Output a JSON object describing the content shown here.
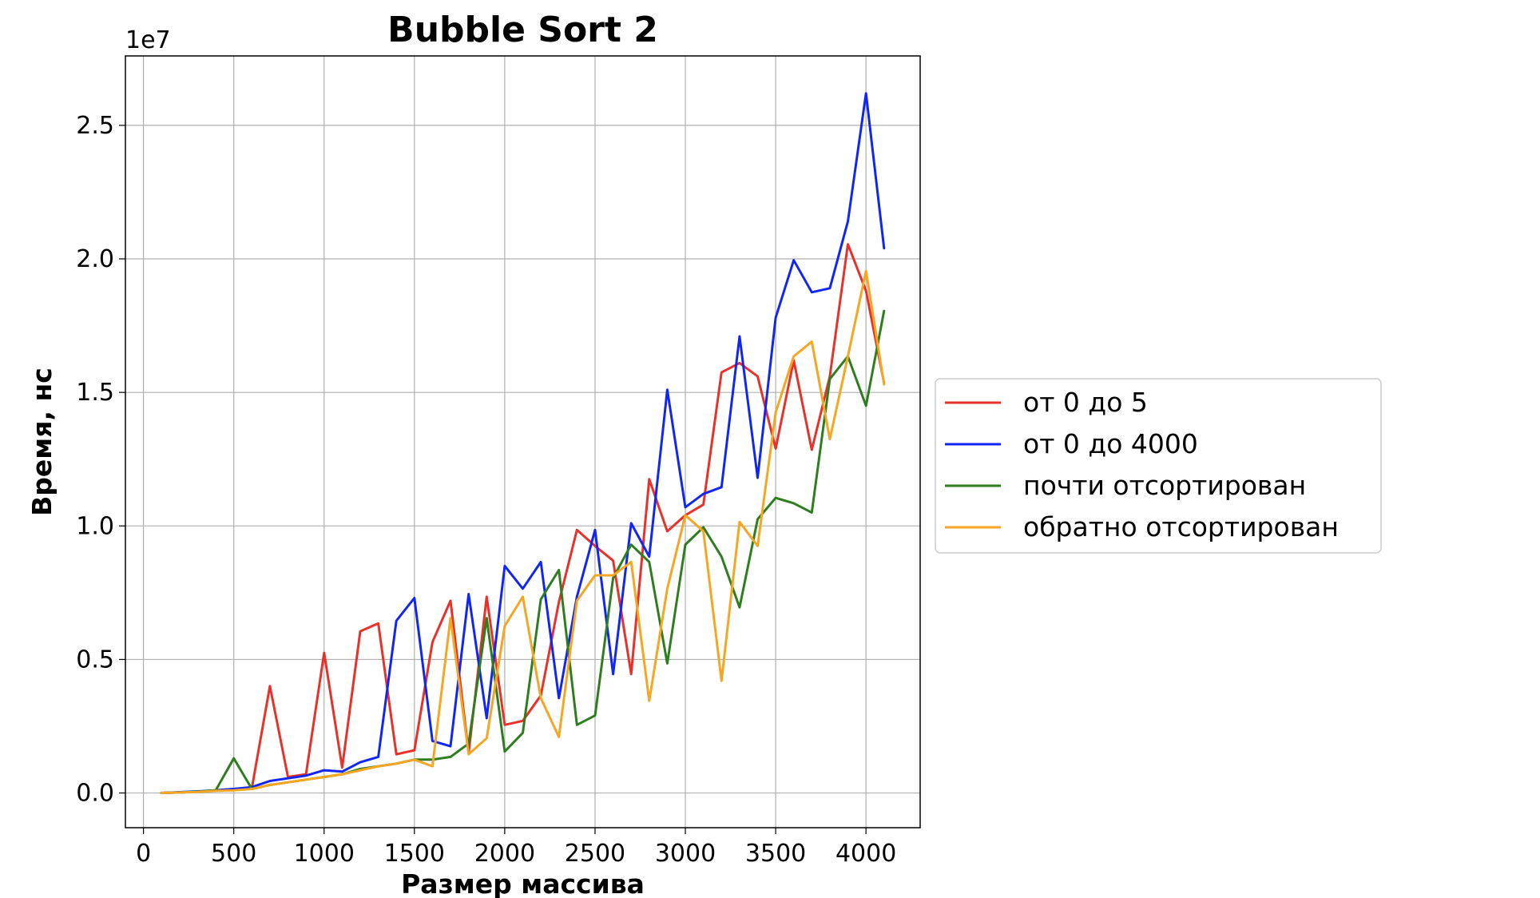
{
  "chart_data": {
    "type": "line",
    "title": "Bubble Sort 2",
    "xlabel": "Размер массива",
    "ylabel": "Время, нс",
    "y_offset_label": "1e7",
    "xlim": [
      -100,
      4300
    ],
    "ylim": [
      -1300000,
      27600000
    ],
    "xticks": [
      0,
      500,
      1000,
      1500,
      2000,
      2500,
      3000,
      3500,
      4000
    ],
    "xtick_labels": [
      "0",
      "500",
      "1000",
      "1500",
      "2000",
      "2500",
      "3000",
      "3500",
      "4000"
    ],
    "yticks": [
      0,
      5000000,
      10000000,
      15000000,
      20000000,
      25000000
    ],
    "ytick_labels": [
      "0.0",
      "0.5",
      "1.0",
      "1.5",
      "2.0",
      "2.5"
    ],
    "grid": true,
    "legend_position": "outside-right",
    "x": [
      100,
      200,
      300,
      400,
      500,
      600,
      700,
      800,
      900,
      1000,
      1100,
      1200,
      1300,
      1400,
      1500,
      1600,
      1700,
      1800,
      1900,
      2000,
      2100,
      2200,
      2300,
      2400,
      2500,
      2600,
      2700,
      2800,
      2900,
      3000,
      3100,
      3200,
      3300,
      3400,
      3500,
      3600,
      3700,
      3800,
      3900,
      4000,
      4100
    ],
    "series": [
      {
        "name": "от 0 до 5",
        "color": "#e8312a",
        "values": [
          0,
          20000,
          50000,
          100000,
          150000,
          180000,
          4000000,
          600000,
          700000,
          5250000,
          950000,
          6050000,
          6350000,
          1450000,
          1600000,
          5650000,
          7200000,
          1500000,
          7350000,
          2550000,
          2700000,
          3650000,
          7150000,
          9850000,
          9250000,
          8700000,
          4450000,
          11750000,
          9800000,
          10400000,
          10800000,
          15750000,
          16100000,
          15600000,
          12900000,
          16200000,
          12850000,
          15600000,
          20550000,
          18800000,
          15350000
        ]
      },
      {
        "name": "от 0 до 4000",
        "color": "#1126f6",
        "values": [
          0,
          30000,
          60000,
          100000,
          150000,
          220000,
          450000,
          550000,
          650000,
          850000,
          800000,
          1150000,
          1350000,
          6450000,
          7300000,
          1950000,
          1750000,
          7450000,
          2800000,
          8500000,
          7650000,
          8650000,
          3550000,
          7350000,
          9850000,
          4450000,
          10100000,
          8850000,
          15100000,
          10700000,
          11200000,
          11450000,
          17100000,
          11800000,
          17800000,
          19950000,
          18750000,
          18900000,
          21400000,
          26200000,
          20400000
        ]
      },
      {
        "name": "почти отсортирован",
        "color": "#2e7d1f",
        "values": [
          0,
          20000,
          50000,
          100000,
          1300000,
          150000,
          300000,
          400000,
          500000,
          600000,
          700000,
          900000,
          1000000,
          1100000,
          1250000,
          1250000,
          1350000,
          1850000,
          6550000,
          1550000,
          2250000,
          7250000,
          8350000,
          2550000,
          2900000,
          8050000,
          9300000,
          8650000,
          4850000,
          9300000,
          9950000,
          8850000,
          6950000,
          10250000,
          11050000,
          10850000,
          10500000,
          15500000,
          16350000,
          14500000,
          18050000
        ]
      },
      {
        "name": "обратно отсортирован",
        "color": "#f5a623",
        "values": [
          0,
          20000,
          40000,
          80000,
          100000,
          150000,
          300000,
          400000,
          500000,
          600000,
          700000,
          850000,
          1000000,
          1100000,
          1250000,
          1000000,
          6550000,
          1450000,
          2050000,
          6250000,
          7350000,
          3550000,
          2100000,
          7200000,
          8150000,
          8150000,
          8650000,
          3450000,
          7650000,
          10400000,
          9800000,
          4200000,
          10150000,
          9250000,
          14250000,
          16350000,
          16900000,
          13250000,
          16350000,
          19550000,
          15300000
        ]
      }
    ]
  }
}
